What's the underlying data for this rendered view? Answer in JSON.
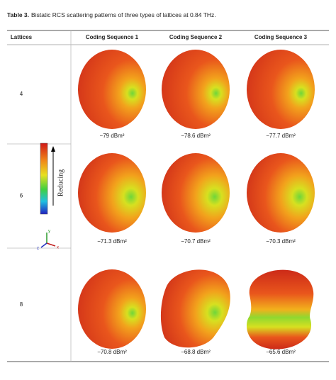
{
  "caption": {
    "label": "Table 3.",
    "text": "Bistatic RCS scattering patterns of three types of lattices at 0.84 THz."
  },
  "table": {
    "header": [
      "Lattices",
      "Coding Sequence 1",
      "Coding Sequence 2",
      "Coding Sequence 3"
    ],
    "rows": [
      {
        "lattice": "4",
        "values": [
          "−79 dBm²",
          "−78.6 dBm²",
          "−77.7 dBm²"
        ]
      },
      {
        "lattice": "6",
        "values": [
          "−71.3 dBm²",
          "−70.7 dBm²",
          "−70.3 dBm²"
        ]
      },
      {
        "lattice": "8",
        "values": [
          "−70.8 dBm²",
          "−68.8 dBm²",
          "−65.6 dBm²"
        ]
      }
    ]
  },
  "legend": {
    "label": "Reducing",
    "axes": [
      "x",
      "y",
      "z"
    ]
  }
}
